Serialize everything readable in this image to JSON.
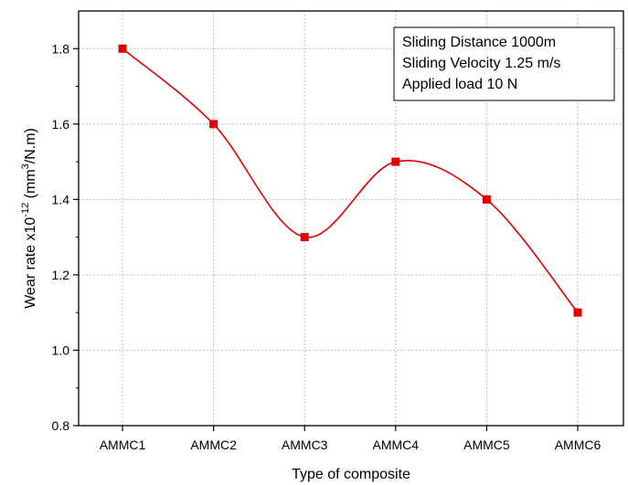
{
  "chart_data": {
    "type": "line",
    "categories": [
      "AMMC1",
      "AMMC2",
      "AMMC3",
      "AMMC4",
      "AMMC5",
      "AMMC6"
    ],
    "values": [
      1.8,
      1.6,
      1.3,
      1.5,
      1.4,
      1.1
    ],
    "xlabel": "Type of composite",
    "ylabel": {
      "prefix": "Wear rate x10",
      "exponent": "-12",
      "unit_open": " (mm",
      "unit_exponent": "3",
      "unit_close": "/N.m)"
    },
    "ylim": [
      0.8,
      1.9
    ],
    "yticks": [
      "0.8",
      "1.0",
      "1.2",
      "1.4",
      "1.6",
      "1.8"
    ],
    "grid": true,
    "smooth": true,
    "colors": {
      "series": "#e00000",
      "grid": "#bfbfbf",
      "axis": "#000000"
    },
    "annotation": {
      "lines": [
        "Sliding Distance 1000m",
        "Sliding Velocity 1.25 m/s",
        "Applied load 10 N"
      ],
      "placement": "top-right"
    }
  }
}
